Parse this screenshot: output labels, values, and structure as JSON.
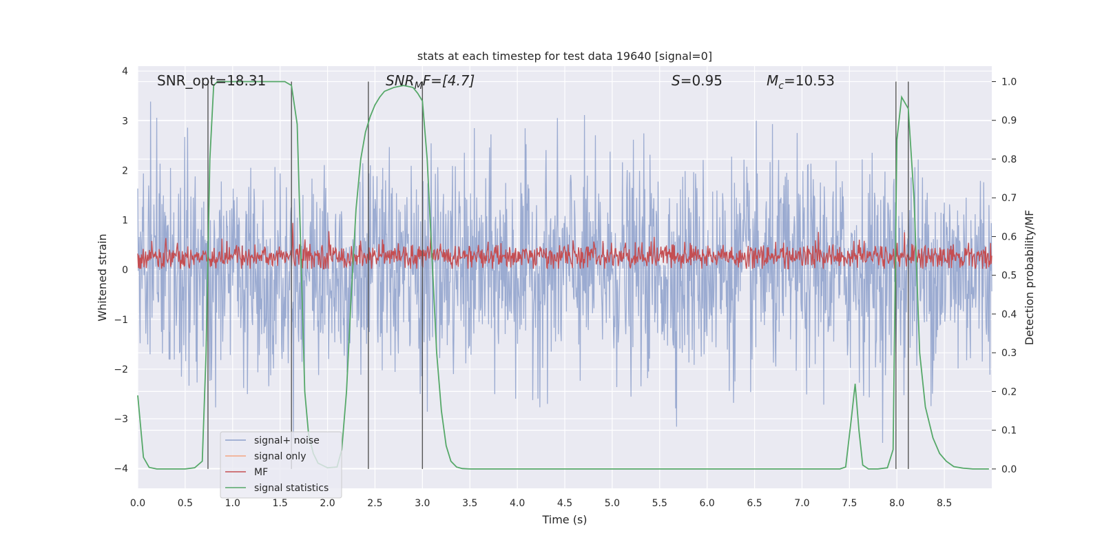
{
  "chart_data": {
    "type": "line",
    "title": "stats at each timestep for test data 19640 [signal=0]",
    "xlabel": "Time (s)",
    "ylabel": "Whitened strain",
    "ylabel_right": "Detection probability/MF",
    "xlim": [
      0.0,
      9.0
    ],
    "ylim": [
      -4.4,
      4.1
    ],
    "ylim_right": [
      -0.05,
      1.04
    ],
    "x_ticks": [
      "0.0",
      "0.5",
      "1.0",
      "1.5",
      "2.0",
      "2.5",
      "3.0",
      "3.5",
      "4.0",
      "4.5",
      "5.0",
      "5.5",
      "6.0",
      "6.5",
      "7.0",
      "7.5",
      "8.0",
      "8.5"
    ],
    "y_ticks": [
      "−4",
      "−3",
      "−2",
      "−1",
      "0",
      "1",
      "2",
      "3",
      "4"
    ],
    "y_ticks_right": [
      "0.0",
      "0.1",
      "0.2",
      "0.3",
      "0.4",
      "0.5",
      "0.6",
      "0.7",
      "0.8",
      "0.9",
      "1.0"
    ],
    "grid": true,
    "legend_position": "lower-left",
    "annotations": {
      "snr_opt": "SNR_opt=18.31",
      "snr_mf_base": "SNR",
      "snr_mf_sub": "M",
      "snr_mf_rest": "F=[4.7]",
      "s_label": "S",
      "s_value": "=0.95",
      "mc_base": "M",
      "mc_sub": "c",
      "mc_value": "=10.53"
    },
    "vertical_markers_s": [
      0.74,
      1.62,
      2.43,
      3.0,
      7.99,
      8.12
    ],
    "series": [
      {
        "name": "signal+ noise",
        "color": "#8da0cb",
        "axis": "left",
        "description_values": {
          "amplitude_range": [
            -4.0,
            3.5
          ],
          "std": 1.0
        }
      },
      {
        "name": "signal only",
        "color": "#f4a582",
        "axis": "left",
        "values": []
      },
      {
        "name": "MF",
        "color": "#c44e52",
        "axis": "left",
        "description_values": {
          "mean": 0.27,
          "range": [
            0.0,
            1.0
          ]
        }
      },
      {
        "name": "signal statistics",
        "color": "#55a868",
        "axis": "right",
        "x": [
          0.0,
          0.06,
          0.12,
          0.2,
          0.3,
          0.4,
          0.5,
          0.6,
          0.68,
          0.72,
          0.76,
          0.8,
          0.84,
          0.9,
          1.0,
          1.2,
          1.4,
          1.55,
          1.62,
          1.68,
          1.72,
          1.76,
          1.8,
          1.85,
          1.9,
          2.0,
          2.1,
          2.15,
          2.2,
          2.25,
          2.3,
          2.35,
          2.4,
          2.45,
          2.5,
          2.55,
          2.6,
          2.7,
          2.8,
          2.9,
          2.95,
          3.0,
          3.05,
          3.1,
          3.15,
          3.2,
          3.25,
          3.3,
          3.36,
          3.42,
          3.5,
          3.8,
          4.5,
          5.5,
          6.5,
          7.0,
          7.4,
          7.46,
          7.52,
          7.56,
          7.6,
          7.64,
          7.7,
          7.8,
          7.9,
          7.96,
          8.0,
          8.05,
          8.12,
          8.18,
          8.24,
          8.3,
          8.38,
          8.45,
          8.52,
          8.6,
          8.7,
          8.8,
          8.9,
          8.97
        ],
        "values": [
          0.19,
          0.03,
          0.004,
          0.0,
          0.0,
          0.0,
          0.0,
          0.003,
          0.02,
          0.3,
          0.8,
          0.99,
          1.0,
          1.0,
          1.0,
          1.0,
          1.0,
          1.0,
          0.99,
          0.89,
          0.55,
          0.2,
          0.09,
          0.04,
          0.015,
          0.003,
          0.005,
          0.05,
          0.2,
          0.45,
          0.67,
          0.8,
          0.87,
          0.91,
          0.94,
          0.96,
          0.975,
          0.985,
          0.99,
          0.985,
          0.97,
          0.95,
          0.8,
          0.55,
          0.3,
          0.15,
          0.06,
          0.02,
          0.005,
          0.001,
          0.0,
          0.0,
          0.0,
          0.0,
          0.0,
          0.0,
          0.0,
          0.005,
          0.13,
          0.22,
          0.1,
          0.01,
          0.0,
          0.0,
          0.003,
          0.05,
          0.85,
          0.96,
          0.93,
          0.7,
          0.3,
          0.16,
          0.08,
          0.04,
          0.02,
          0.006,
          0.002,
          0.0,
          0.0,
          0.0
        ]
      }
    ]
  }
}
